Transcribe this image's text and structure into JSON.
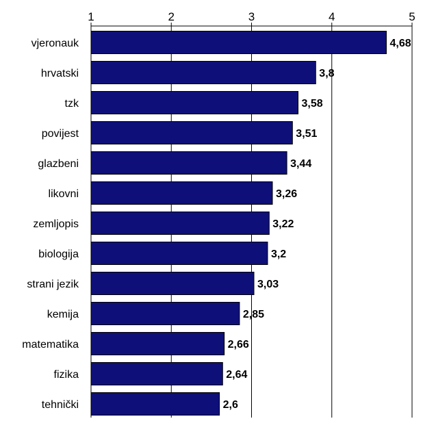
{
  "chart_data": {
    "type": "bar",
    "orientation": "horizontal",
    "categories": [
      "vjeronauk",
      "hrvatski",
      "tzk",
      "povijest",
      "glazbeni",
      "likovni",
      "zemljopis",
      "biologija",
      "strani jezik",
      "kemija",
      "matematika",
      "fizika",
      "tehnički"
    ],
    "values": [
      4.68,
      3.8,
      3.58,
      3.51,
      3.44,
      3.26,
      3.22,
      3.2,
      3.03,
      2.85,
      2.66,
      2.64,
      2.6
    ],
    "value_labels": [
      "4,68",
      "3,8",
      "3,58",
      "3,51",
      "3,44",
      "3,26",
      "3,22",
      "3,2",
      "3,03",
      "2,85",
      "2,66",
      "2,64",
      "2,6"
    ],
    "xlim": [
      1,
      5
    ],
    "ticks": [
      "1",
      "2",
      "3",
      "4",
      "5"
    ],
    "x_axis_position": "top",
    "grid": true,
    "title": "",
    "xlabel": "",
    "ylabel": "",
    "colors": {
      "bar_fill": "#0f0f7a",
      "bar_stroke": "#000000",
      "grid": "#000000"
    }
  }
}
